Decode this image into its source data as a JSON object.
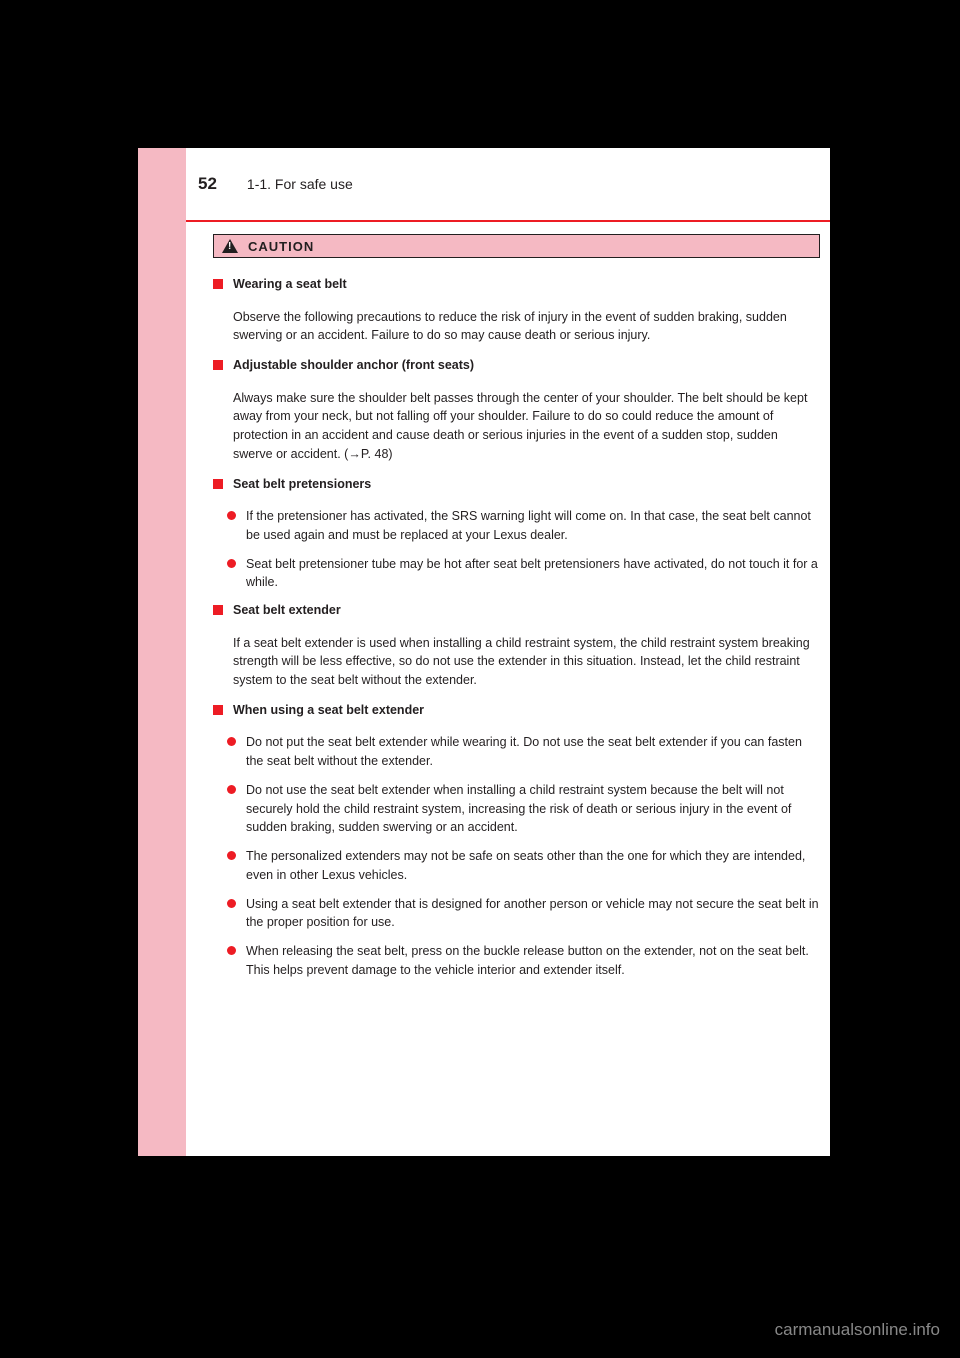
{
  "page": {
    "number": "52",
    "breadcrumb": "1-1. For safe use"
  },
  "caution": {
    "label": "CAUTION"
  },
  "sections": [
    {
      "type": "square",
      "title": "Wearing a seat belt",
      "body": "Observe the following precautions to reduce the risk of injury in the event of sudden braking, sudden swerving or an accident. Failure to do so may cause death or serious injury."
    },
    {
      "type": "square",
      "title": "Adjustable shoulder anchor (front seats)",
      "body": "Always make sure the shoulder belt passes through the center of your shoulder. The belt should be kept away from your neck, but not falling off your shoulder. Failure to do so could reduce the amount of protection in an accident and cause death or serious injuries in the event of a sudden stop, sudden swerve or accident. (→P. 48)"
    },
    {
      "type": "square",
      "title": "Seat belt pretensioners",
      "bullets": [
        "If the pretensioner has activated, the SRS warning light will come on. In that case, the seat belt cannot be used again and must be replaced at your Lexus dealer.",
        "Seat belt pretensioner tube may be hot after seat belt pretensioners have activated, do not touch it for a while."
      ]
    },
    {
      "type": "square",
      "title": "Seat belt extender",
      "body": "If a seat belt extender is used when installing a child restraint system, the child restraint system breaking strength will be less effective, so do not use the extender in this situation. Instead, let the child restraint system to the seat belt without the extender."
    },
    {
      "type": "square",
      "title": "When using a seat belt extender",
      "bullets": [
        "Do not put the seat belt extender while wearing it. Do not use the seat belt extender if you can fasten the seat belt without the extender.",
        "Do not use the seat belt extender when installing a child restraint system because the belt will not securely hold the child restraint system, increasing the risk of death or serious injury in the event of sudden braking, sudden swerving or an accident.",
        "The personalized extenders may not be safe on seats other than the one for which they are intended, even in other Lexus vehicles.",
        "Using a seat belt extender that is designed for another person or vehicle may not secure the seat belt in the proper position for use.",
        "When releasing the seat belt, press on the buckle release button on the extender, not on the seat belt. This helps prevent damage to the vehicle interior and extender itself."
      ]
    }
  ],
  "watermark": "carmanualsonline.info",
  "colors": {
    "background": "#000000",
    "pink": "#f5b9c3",
    "red": "#ed1c24",
    "text": "#231f20",
    "white": "#ffffff",
    "watermark": "#888888"
  }
}
